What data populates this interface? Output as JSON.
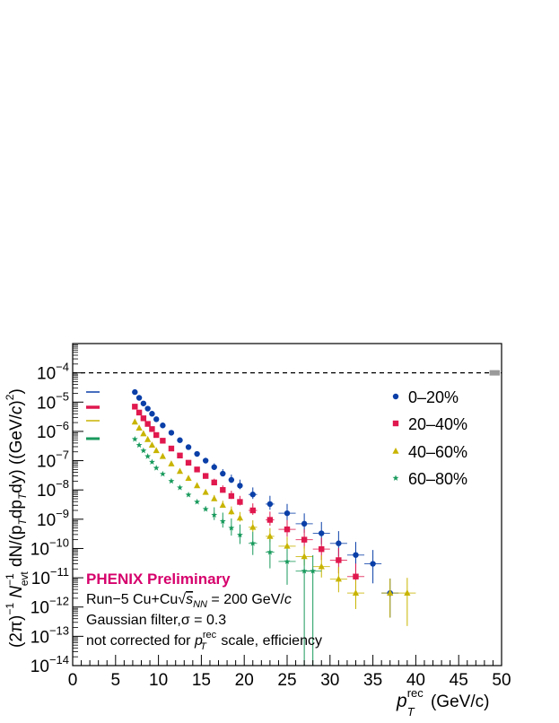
{
  "chart_data": {
    "type": "scatter",
    "xlabel_main": "p",
    "xlabel_sub": "T",
    "xlabel_sup": "rec",
    "xlabel_rest": " (GeV/c)",
    "ylabel": "(2π)⁻¹ N⁻¹evt dN/(pT dpT dy) ((GeV/c)²)",
    "xlim": [
      0,
      50
    ],
    "ylim": [
      1e-14,
      0.001
    ],
    "y_scale": "log",
    "x_ticks": [
      0,
      5,
      10,
      15,
      20,
      25,
      30,
      35,
      40,
      45,
      50
    ],
    "y_tick_exponents": [
      -14,
      -13,
      -12,
      -11,
      -10,
      -9,
      -8,
      -7,
      -6,
      -5,
      -4
    ],
    "reference_line_y": 0.0001,
    "legend_position": "top-right",
    "series": [
      {
        "name": "0–20%",
        "color": "#0a3fa8",
        "marker": "circle",
        "x": [
          7.25,
          7.75,
          8.25,
          8.75,
          9.25,
          9.75,
          10.5,
          11.5,
          12.5,
          13.5,
          14.5,
          15.5,
          16.5,
          17.5,
          18.5,
          19.5,
          21,
          23,
          25,
          27,
          29,
          31,
          33,
          35,
          37
        ],
        "y": [
          2.2e-05,
          1.4e-05,
          9e-06,
          6e-06,
          4e-06,
          2.6e-06,
          1.6e-06,
          9e-07,
          5e-07,
          2.9e-07,
          1.7e-07,
          1e-07,
          6e-08,
          3.6e-08,
          2.2e-08,
          1.4e-08,
          7e-09,
          3.3e-09,
          1.6e-09,
          7e-10,
          3.3e-10,
          1.5e-10,
          6e-11,
          3e-11,
          3e-12
        ]
      },
      {
        "name": "20–40%",
        "color": "#e0184e",
        "marker": "square",
        "x": [
          7.25,
          7.75,
          8.25,
          8.75,
          9.25,
          9.75,
          10.5,
          11.5,
          12.5,
          13.5,
          14.5,
          15.5,
          16.5,
          17.5,
          18.5,
          19.5,
          21,
          23,
          25,
          27,
          29,
          31,
          33
        ],
        "y": [
          7e-06,
          4.4e-06,
          2.8e-06,
          1.8e-06,
          1.2e-06,
          7.5e-07,
          4.8e-07,
          2.6e-07,
          1.5e-07,
          8.5e-08,
          5e-08,
          3e-08,
          1.8e-08,
          1e-08,
          6.2e-09,
          3.9e-09,
          2e-09,
          9.5e-10,
          4.5e-10,
          2e-10,
          9.5e-11,
          4e-11,
          1.1e-11
        ]
      },
      {
        "name": "40–60%",
        "color": "#c8b400",
        "marker": "triangle",
        "x": [
          7.25,
          7.75,
          8.25,
          8.75,
          9.25,
          9.75,
          10.5,
          11.5,
          12.5,
          13.5,
          14.5,
          15.5,
          16.5,
          17.5,
          18.5,
          19.5,
          21,
          23,
          25,
          27,
          29,
          31,
          33,
          37,
          39
        ],
        "y": [
          2.1e-06,
          1.3e-06,
          8.3e-07,
          5.3e-07,
          3.4e-07,
          2.2e-07,
          1.4e-07,
          7.8e-08,
          4.3e-08,
          2.5e-08,
          1.4e-08,
          8.3e-09,
          5e-09,
          3e-09,
          1.8e-09,
          1.1e-09,
          5.3e-10,
          2.6e-10,
          1.2e-10,
          5.3e-11,
          2.4e-11,
          9e-12,
          3e-12,
          3e-12,
          3e-12
        ]
      },
      {
        "name": "60–80%",
        "color": "#189a5c",
        "marker": "star",
        "x": [
          7.25,
          7.75,
          8.25,
          8.75,
          9.25,
          9.75,
          10.5,
          11.5,
          12.5,
          13.5,
          14.5,
          15.5,
          16.5,
          17.5,
          18.5,
          19.5,
          21,
          23,
          25,
          27,
          28
        ],
        "y": [
          5.4e-07,
          3.4e-07,
          2.2e-07,
          1.4e-07,
          9e-08,
          5.6e-08,
          3.5e-08,
          2e-08,
          1.2e-08,
          6.8e-09,
          3.9e-09,
          2.2e-09,
          1.4e-09,
          8.5e-10,
          5e-10,
          2.9e-10,
          1.5e-10,
          7.5e-11,
          3.6e-11,
          1.7e-11,
          1.7e-11
        ]
      }
    ]
  },
  "annotations": {
    "prelim": "PHENIX Preliminary",
    "prelim_color": "#d6006c",
    "line1_a": "Run−5 Cu+Cu",
    "line1_sqrt_sym": "√",
    "line1_s": "s",
    "line1_nn": "NN",
    "line1_b": " = 200 GeV/",
    "line1_c": "c",
    "line2": "Gaussian filter,σ = 0.3",
    "line3_a": "not corrected for ",
    "line3_p": "p",
    "line3_sub": "T",
    "line3_sup": "rec",
    "line3_b": " scale, efficiency"
  },
  "ylabel_parts": {
    "a": "(2π)",
    "a_sup": "−1",
    "b": " N",
    "b_sup": "−1",
    "b_sub": "evt",
    "c": " dN/(p",
    "c_sub": "T",
    "d": "dp",
    "d_sub": "T",
    "e": "dy) ((GeV/",
    "e_c": "c",
    "e_end": ")",
    "e_sup": "2",
    "f": ")"
  }
}
